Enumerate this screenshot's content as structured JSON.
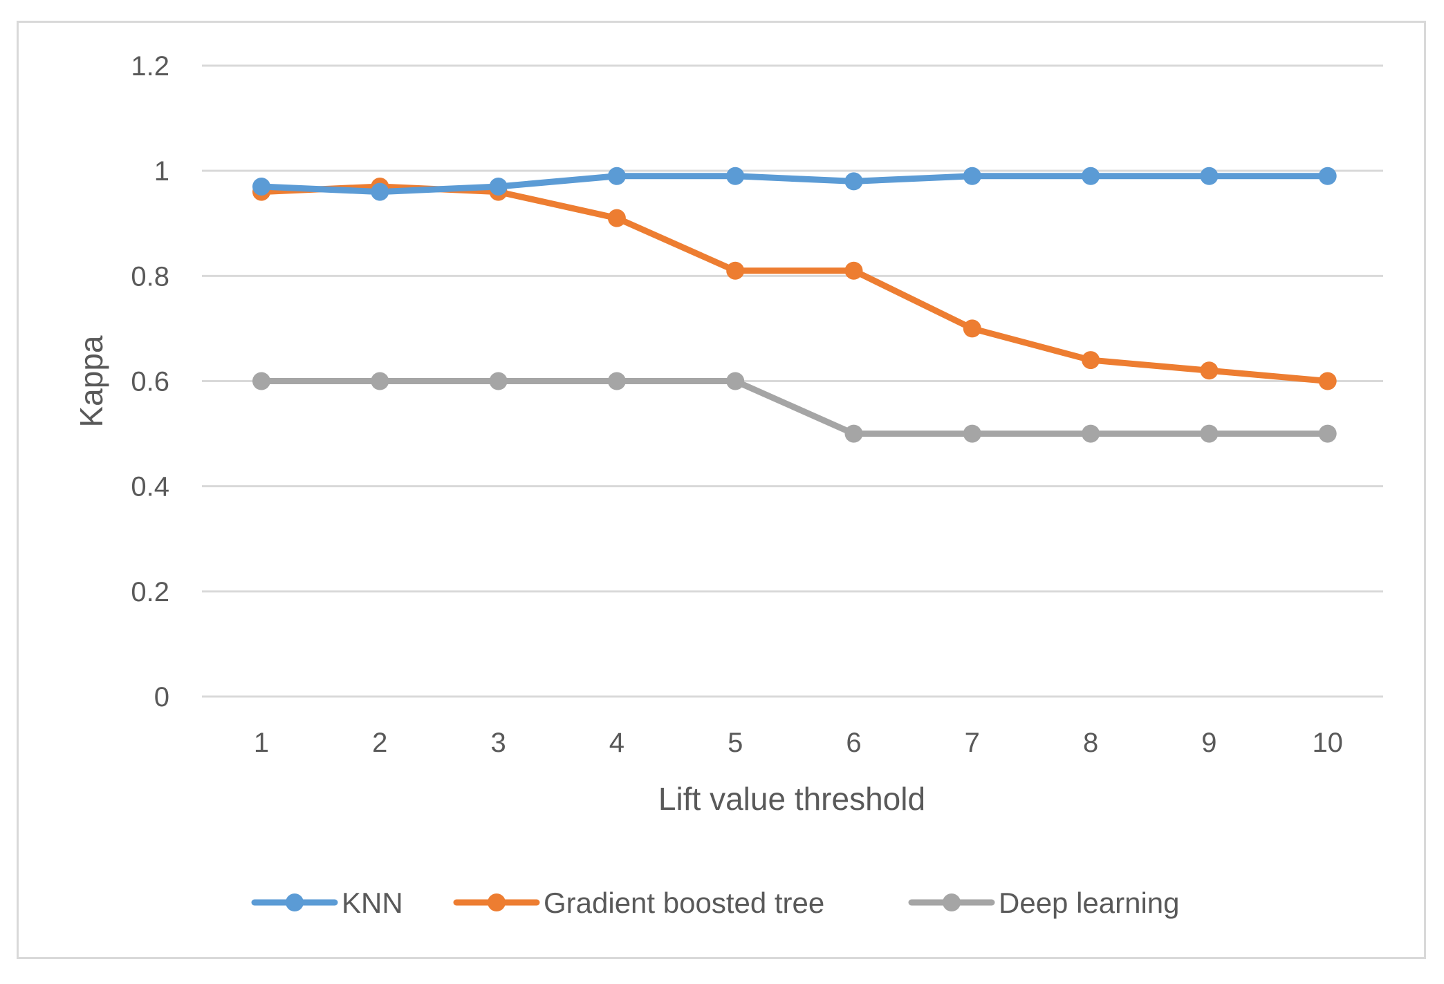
{
  "chart_data": {
    "type": "line",
    "title": "",
    "xlabel": "Lift value threshold",
    "ylabel": "Kappa",
    "categories": [
      "1",
      "2",
      "3",
      "4",
      "5",
      "6",
      "7",
      "8",
      "9",
      "10"
    ],
    "ylim": [
      0,
      1.2
    ],
    "yticks": [
      0,
      0.2,
      0.4,
      0.6,
      0.8,
      1,
      1.2
    ],
    "ytick_labels": [
      "0",
      "0.2",
      "0.4",
      "0.6",
      "0.8",
      "1",
      "1.2"
    ],
    "grid": true,
    "legend_position": "bottom",
    "series": [
      {
        "name": "KNN",
        "color": "#5b9bd5",
        "values": [
          0.97,
          0.96,
          0.97,
          0.99,
          0.99,
          0.98,
          0.99,
          0.99,
          0.99,
          0.99
        ]
      },
      {
        "name": "Gradient boosted tree",
        "color": "#ed7d31",
        "values": [
          0.96,
          0.97,
          0.96,
          0.91,
          0.81,
          0.81,
          0.7,
          0.64,
          0.62,
          0.6
        ]
      },
      {
        "name": "Deep learning",
        "color": "#a5a5a5",
        "values": [
          0.6,
          0.6,
          0.6,
          0.6,
          0.6,
          0.5,
          0.5,
          0.5,
          0.5,
          0.5
        ]
      }
    ]
  }
}
